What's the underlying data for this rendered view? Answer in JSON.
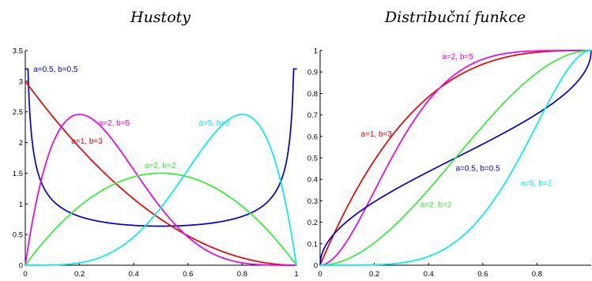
{
  "chart_data": [
    {
      "type": "line",
      "title": "Hustoty",
      "xlabel": "",
      "ylabel": "",
      "xlim": [
        0,
        1
      ],
      "ylim": [
        0,
        3.5
      ],
      "xticks": [
        "0",
        "0.2",
        "0.4",
        "0.6",
        "0.8",
        "1"
      ],
      "yticks": [
        "0",
        "0.5",
        "1",
        "1.5",
        "2",
        "2.5",
        "3",
        "3.5"
      ],
      "grid": false,
      "series": [
        {
          "name": "a=0.5, b=0.5",
          "a": 0.5,
          "b": 0.5,
          "color": "#0000cc",
          "label_at": [
            0.03,
            3.15
          ]
        },
        {
          "name": "a=1, b=3",
          "a": 1,
          "b": 3,
          "color": "#ee0000",
          "label_at": [
            0.17,
            1.98
          ]
        },
        {
          "name": "a=2, b=5",
          "a": 2,
          "b": 5,
          "color": "#ee00ee",
          "label_at": [
            0.27,
            2.28
          ]
        },
        {
          "name": "a=2, b=2",
          "a": 2,
          "b": 2,
          "color": "#33ee33",
          "label_at": [
            0.44,
            1.58
          ]
        },
        {
          "name": "a=5, b=2",
          "a": 5,
          "b": 2,
          "color": "#00eeee",
          "label_at": [
            0.64,
            2.28
          ]
        }
      ]
    },
    {
      "type": "line",
      "title": "Distribuční funkce",
      "xlabel": "",
      "ylabel": "",
      "xlim": [
        0,
        1
      ],
      "ylim": [
        0,
        1
      ],
      "xticks": [
        "0",
        "0.2",
        "0.4",
        "0.6",
        "0.8"
      ],
      "yticks": [
        "0",
        "0.1",
        "0.2",
        "0.3",
        "0.4",
        "0.5",
        "0.6",
        "0.7",
        "0.8",
        "0.9",
        "1"
      ],
      "grid": false,
      "series": [
        {
          "name": "a=1, b=3",
          "a": 1,
          "b": 3,
          "color": "#ee0000",
          "label_at": [
            0.15,
            0.6
          ]
        },
        {
          "name": "a=2, b=5",
          "a": 2,
          "b": 5,
          "color": "#ee00ee",
          "label_at": [
            0.45,
            0.96
          ]
        },
        {
          "name": "a=0.5, b=0.5",
          "a": 0.5,
          "b": 0.5,
          "color": "#0000cc",
          "label_at": [
            0.5,
            0.44
          ]
        },
        {
          "name": "a=2, b=2",
          "a": 2,
          "b": 2,
          "color": "#33ee33",
          "label_at": [
            0.37,
            0.27
          ]
        },
        {
          "name": "a=5, b=2",
          "a": 5,
          "b": 2,
          "color": "#00eeee",
          "label_at": [
            0.74,
            0.37
          ]
        }
      ]
    }
  ]
}
